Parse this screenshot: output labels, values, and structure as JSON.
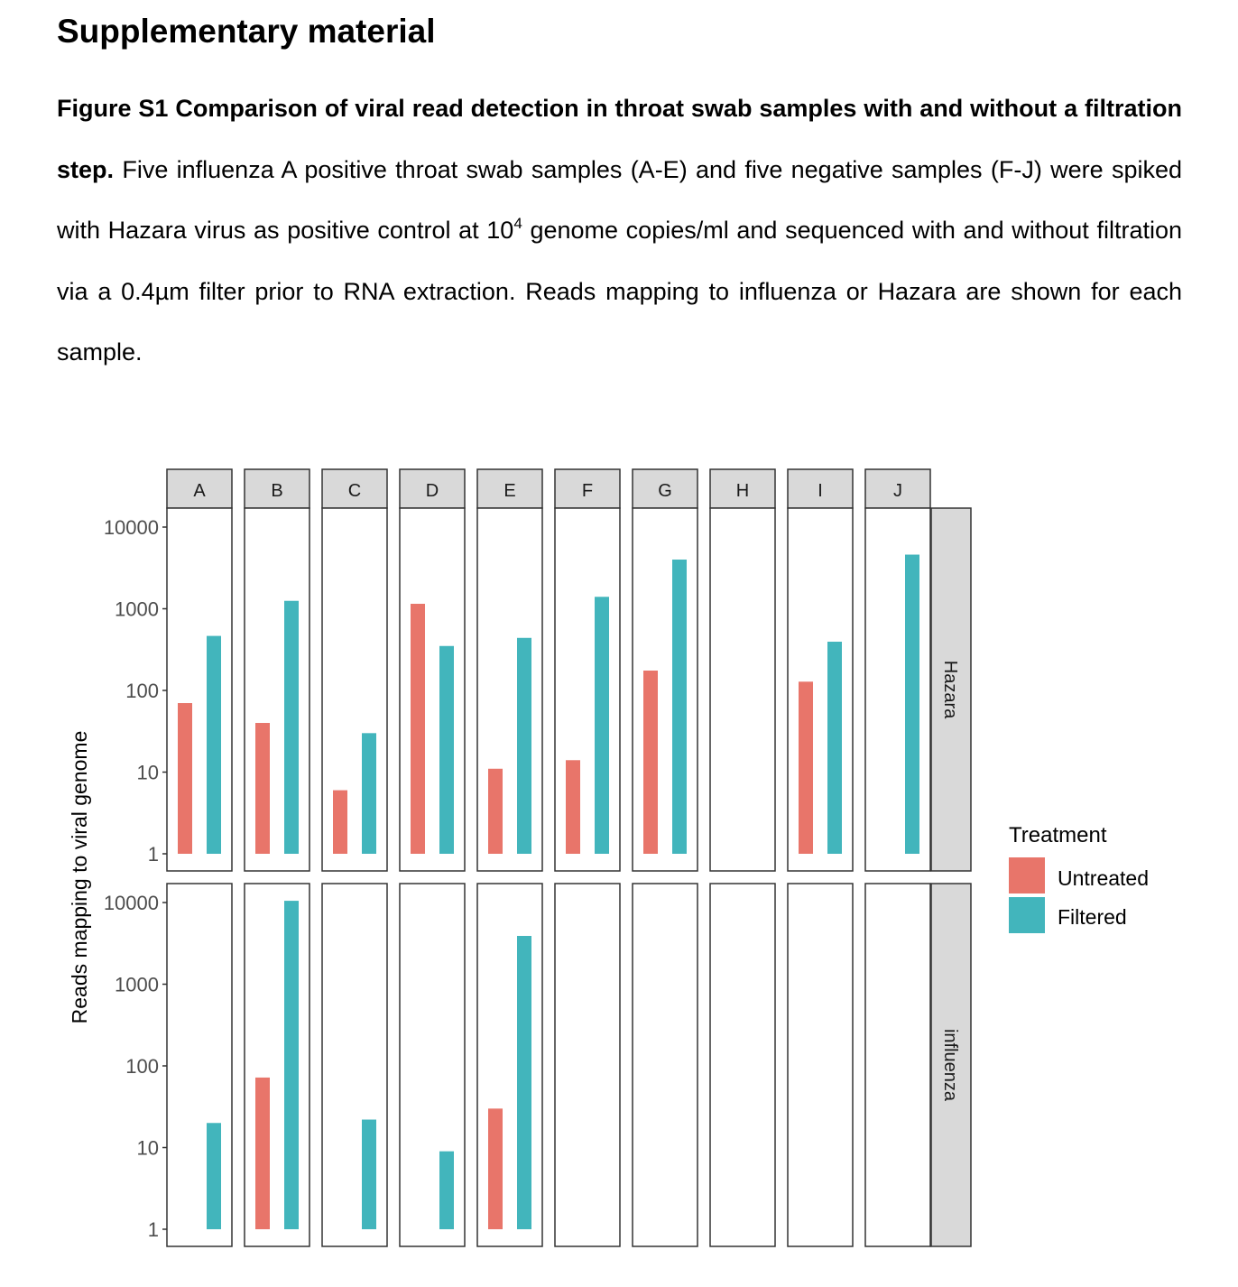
{
  "heading": "Supplementary material",
  "caption": {
    "title": "Figure S1 Comparison of viral read detection in throat swab samples with and without a filtration step.",
    "text_before_sup": " Five influenza A positive throat swab samples (A-E) and five negative samples (F-J) were spiked with Hazara virus as positive control at 10",
    "sup": "4",
    "text_after_sup": " genome copies/ml and sequenced with and without filtration via a 0.4µm filter prior to RNA extraction. Reads mapping to influenza or Hazara are shown for each sample."
  },
  "chart_data": {
    "type": "bar",
    "scale": "log10",
    "ylabel": "Reads mapping to viral genome",
    "yticks": [
      1,
      10,
      100,
      1000,
      10000
    ],
    "ytick_labels": [
      "1",
      "10",
      "100",
      "1000",
      "10000"
    ],
    "ylim": [
      1,
      10000
    ],
    "columns": [
      "A",
      "B",
      "C",
      "D",
      "E",
      "F",
      "G",
      "H",
      "I",
      "J"
    ],
    "rows": [
      "Hazara",
      "influenza"
    ],
    "legend": {
      "title": "Treatment",
      "placement": "right",
      "entries": [
        {
          "name": "Untreated",
          "color": "#E8756A"
        },
        {
          "name": "Filtered",
          "color": "#42B5BC"
        }
      ]
    },
    "series": [
      {
        "name": "Untreated",
        "color": "#E8756A",
        "values": {
          "Hazara": [
            70,
            40,
            6,
            1150,
            11,
            14,
            175,
            null,
            128,
            null
          ],
          "influenza": [
            null,
            72,
            null,
            null,
            30,
            null,
            null,
            null,
            null,
            null
          ]
        }
      },
      {
        "name": "Filtered",
        "color": "#42B5BC",
        "values": {
          "Hazara": [
            465,
            1250,
            30,
            350,
            440,
            1400,
            4000,
            null,
            395,
            4600
          ],
          "influenza": [
            20,
            10500,
            22,
            9,
            3900,
            null,
            null,
            null,
            null,
            null
          ]
        }
      }
    ]
  }
}
